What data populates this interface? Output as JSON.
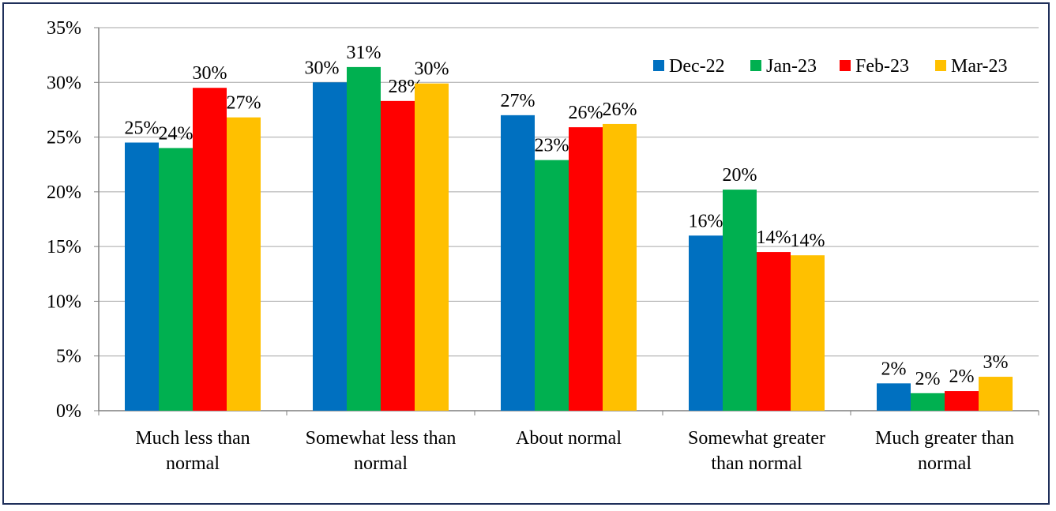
{
  "chart_data": {
    "type": "bar",
    "categories": [
      [
        "Much less than",
        "normal"
      ],
      [
        "Somewhat less than",
        "normal"
      ],
      [
        "About normal"
      ],
      [
        "Somewhat greater",
        "than normal"
      ],
      [
        "Much greater than",
        "normal"
      ]
    ],
    "series": [
      {
        "name": "Dec-22",
        "color": "#0070c0",
        "values": [
          24.5,
          30.0,
          27.0,
          16.0,
          2.5
        ],
        "labels": [
          "25%",
          "30%",
          "27%",
          "16%",
          "2%"
        ]
      },
      {
        "name": "Jan-23",
        "color": "#00b050",
        "values": [
          24.0,
          31.4,
          22.9,
          20.2,
          1.6
        ],
        "labels": [
          "24%",
          "31%",
          "23%",
          "20%",
          "2%"
        ]
      },
      {
        "name": "Feb-23",
        "color": "#ff0000",
        "values": [
          29.5,
          28.3,
          25.9,
          14.5,
          1.8
        ],
        "labels": [
          "30%",
          "28%",
          "26%",
          "14%",
          "2%"
        ]
      },
      {
        "name": "Mar-23",
        "color": "#ffc000",
        "values": [
          26.8,
          29.9,
          26.2,
          14.2,
          3.1
        ],
        "labels": [
          "27%",
          "30%",
          "26%",
          "14%",
          "3%"
        ]
      }
    ],
    "y_ticks": [
      "0%",
      "5%",
      "10%",
      "15%",
      "20%",
      "25%",
      "30%",
      "35%"
    ],
    "ylim": [
      0,
      35
    ],
    "grid": true,
    "legend_position": "top-right",
    "title": "",
    "xlabel": "",
    "ylabel": ""
  }
}
